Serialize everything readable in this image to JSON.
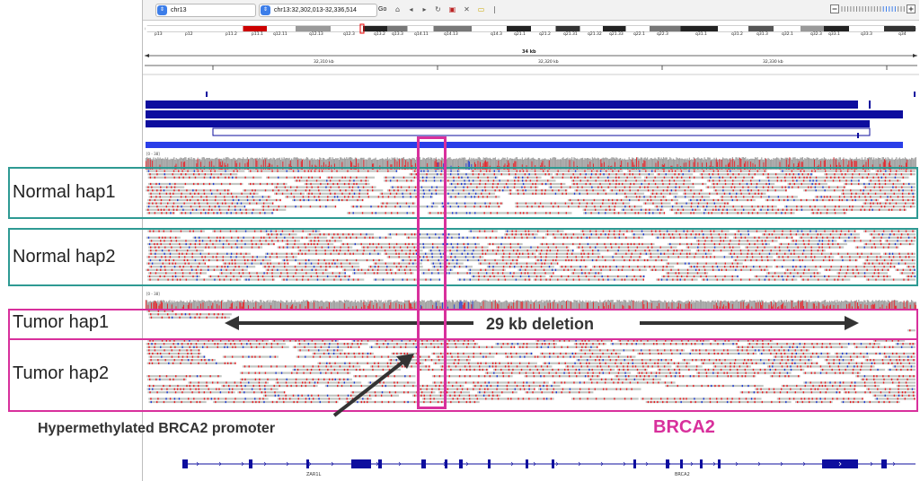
{
  "toolbar": {
    "genome_select": "chr13",
    "locus": "chr13:32,302,013-32,336,514",
    "go_label": "Go",
    "icons": [
      "home-icon",
      "back-icon",
      "forward-icon",
      "refresh-icon",
      "roi-icon",
      "close-icon",
      "popup-icon"
    ],
    "zoom_minus": "−",
    "zoom_plus": "+"
  },
  "ideogram": {
    "bands": [
      "p13",
      "p12",
      "p11.2",
      "p11.1",
      "q12.11",
      "q12.13",
      "q12.3",
      "q13.2",
      "q13.3",
      "q14.11",
      "q14.13",
      "q14.3",
      "q21.1",
      "q21.2",
      "q21.31",
      "q21.32",
      "q21.33",
      "q22.1",
      "q22.3",
      "q31.1",
      "q31.2",
      "q31.3",
      "q32.1",
      "q32.3",
      "q33.1",
      "q33.3",
      "q34"
    ]
  },
  "ruler": {
    "span": "34 kb",
    "ticks": [
      "32,310 kb",
      "32,320 kb",
      "32,330 kb"
    ]
  },
  "tracks": {
    "scale_label": "[0 - 38]"
  },
  "haplotypes": [
    {
      "id": "normal-hap1",
      "label": "Normal hap1",
      "color": "#2e9a93"
    },
    {
      "id": "normal-hap2",
      "label": "Normal hap2",
      "color": "#2e9a93"
    },
    {
      "id": "tumor-hap1",
      "label": "Tumor hap1",
      "color": "#d8309c"
    },
    {
      "id": "tumor-hap2",
      "label": "Tumor hap2",
      "color": "#d8309c"
    }
  ],
  "annotations": {
    "deletion": "29 kb deletion",
    "promoter": "Hypermethylated BRCA2 promoter",
    "gene_callout": "BRCA2"
  },
  "genes": [
    {
      "name": "ZAR1L"
    },
    {
      "name": "BRCA2"
    }
  ],
  "colors": {
    "methylated": "#ec1e24",
    "unmethylated": "#1f3bd6",
    "read": "#c2c5c2",
    "coverage": "#a3a3a3",
    "feature": "#0d0d9e",
    "highlight": "#d8309c"
  }
}
